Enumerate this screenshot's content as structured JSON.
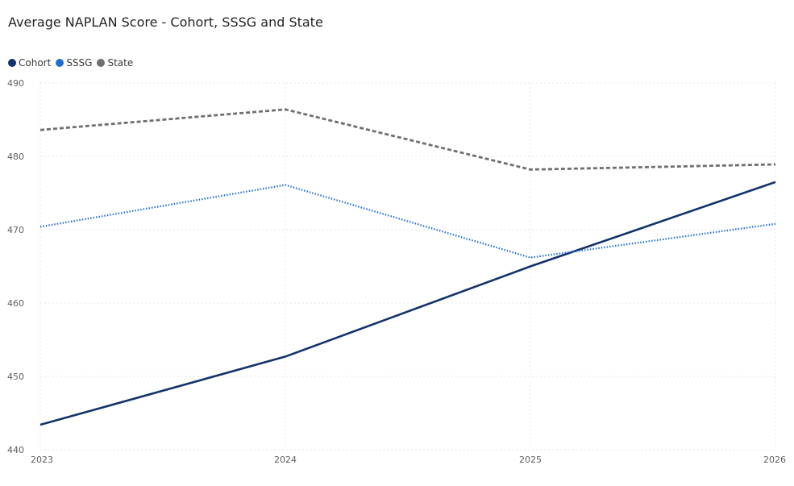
{
  "chart_data": {
    "type": "line",
    "title": "Average NAPLAN Score - Cohort, SSSG and State",
    "xlabel": "",
    "ylabel": "",
    "categories": [
      "2023",
      "2024",
      "2025",
      "2026"
    ],
    "ylim": [
      440,
      490
    ],
    "yticks": [
      "440",
      "450",
      "460",
      "470",
      "480",
      "490"
    ],
    "grid": true,
    "legend_position": "top-left",
    "series": [
      {
        "name": "Cohort",
        "values": [
          443.4,
          452.7,
          465.0,
          476.5
        ],
        "color": "#12336b",
        "style": "solid"
      },
      {
        "name": "SSSG",
        "values": [
          470.4,
          476.1,
          466.2,
          470.8
        ],
        "color": "#1f6ed4",
        "style": "dotted"
      },
      {
        "name": "State",
        "values": [
          483.6,
          486.4,
          478.2,
          478.9
        ],
        "color": "#6f6f6f",
        "style": "dashed"
      }
    ]
  }
}
